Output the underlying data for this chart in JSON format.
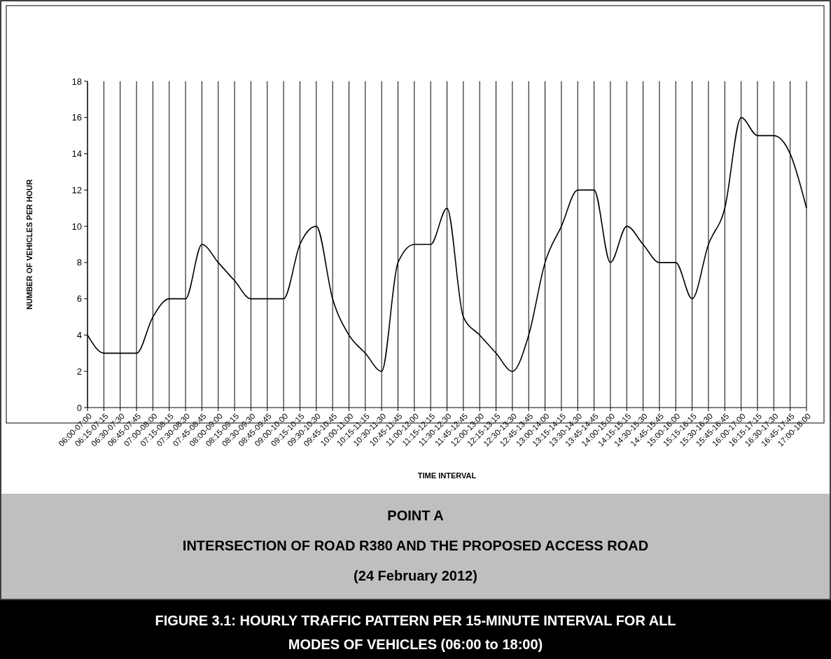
{
  "chart_data": {
    "type": "line",
    "title": "POINT A",
    "subtitle": "INTERSECTION OF ROAD R380 AND THE PROPOSED ACCESS ROAD",
    "annotations": [
      "(24 February 2012)",
      "FIGURE 3.1: HOURLY TRAFFIC PATTERN PER 15-MINUTE INTERVAL FOR ALL MODES OF VEHICLES (06:00 to 18:00)"
    ],
    "xlabel": "TIME INTERVAL",
    "ylabel": "NUMBER OF VEHICLES PER HOUR",
    "categories": [
      "06:00-07:00",
      "06:15-07:15",
      "06:30-07:30",
      "06:45-07:45",
      "07:00-08:00",
      "07:15-08:15",
      "07:30-08:30",
      "07:45-08:45",
      "08:00-09:00",
      "08:15-09:15",
      "08:30-09:30",
      "08:45-09:45",
      "09:00-10:00",
      "09:15-10:15",
      "09:30-10:30",
      "09:45-10:45",
      "10:00-11:00",
      "10:15-11:15",
      "10:30-11:30",
      "10:45-11:45",
      "11:00-12:00",
      "11:15-12:15",
      "11:30-12:30",
      "11:45-12:45",
      "12:00-13:00",
      "12:15-13:15",
      "12:30-13:30",
      "12:45-13:45",
      "13:00-14:00",
      "13:15-14:15",
      "13:30-14:30",
      "13:45-14:45",
      "14:00-15:00",
      "14:15-15:15",
      "14:30-15:30",
      "14:45-15:45",
      "15:00-16:00",
      "15:15-16:15",
      "15:30-16:30",
      "15:45-16:45",
      "16:00-17:00",
      "16:15-17:15",
      "16:30-17:30",
      "16:45-17:45",
      "17:00-18:00"
    ],
    "series": [
      {
        "color": "#000000",
        "values": [
          4,
          3,
          3,
          3,
          5,
          6,
          6,
          9,
          8,
          7,
          6,
          6,
          6,
          9,
          10,
          6,
          4,
          3,
          2,
          8,
          9,
          9,
          11,
          5,
          4,
          3,
          2,
          4,
          8,
          10,
          12,
          12,
          8,
          10,
          9,
          8,
          8,
          6,
          9,
          11,
          16,
          15,
          15,
          14,
          11
        ]
      }
    ],
    "ylim": [
      0,
      18
    ],
    "yticks": [
      0,
      2,
      4,
      6,
      8,
      10,
      12,
      14,
      16,
      18
    ],
    "grid": "x",
    "marker": "none",
    "line_style": "solid"
  }
}
